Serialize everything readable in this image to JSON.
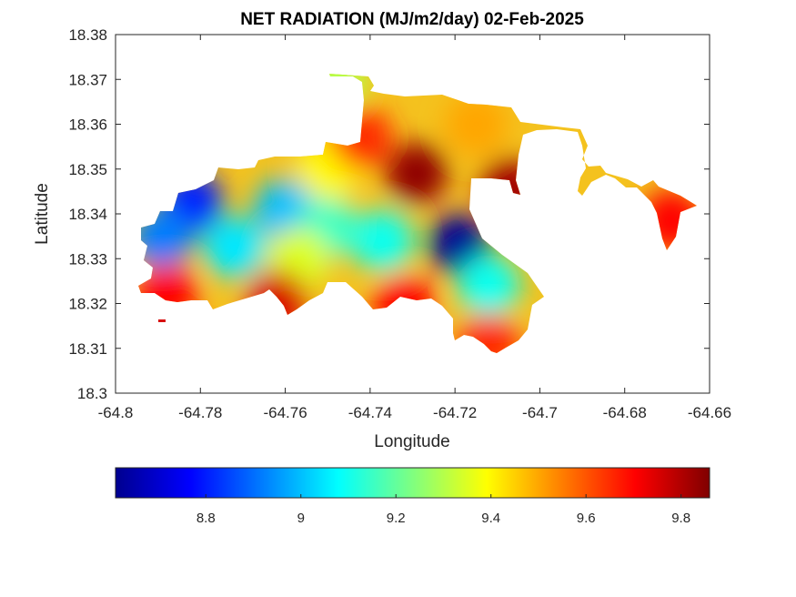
{
  "chart_data": {
    "type": "heatmap",
    "title": "NET RADIATION (MJ/m2/day) 02-Feb-2025",
    "xlabel": "Longitude",
    "ylabel": "Latitude",
    "xlim": [
      -64.8,
      -64.66
    ],
    "ylim": [
      18.3,
      18.38
    ],
    "x_ticks": [
      -64.8,
      -64.78,
      -64.76,
      -64.74,
      -64.72,
      -64.7,
      -64.68,
      -64.66
    ],
    "x_tick_labels": [
      "-64.8",
      "-64.78",
      "-64.76",
      "-64.74",
      "-64.72",
      "-64.7",
      "-64.68",
      "-64.66"
    ],
    "y_ticks": [
      18.3,
      18.31,
      18.32,
      18.33,
      18.34,
      18.35,
      18.36,
      18.37,
      18.38
    ],
    "y_tick_labels": [
      "18.3",
      "18.31",
      "18.32",
      "18.33",
      "18.34",
      "18.35",
      "18.36",
      "18.37",
      "18.38"
    ],
    "colormap": "jet",
    "colorbar": {
      "orientation": "horizontal",
      "position": "bottom",
      "range": [
        8.61,
        9.86
      ],
      "ticks": [
        8.8,
        9.0,
        9.2,
        9.4,
        9.6,
        9.8
      ],
      "tick_labels": [
        "8.8",
        "9",
        "9.2",
        "9.4",
        "9.6",
        "9.8"
      ]
    },
    "grid": false,
    "hotspots": [
      {
        "lon": -64.719,
        "lat": 18.3332,
        "value": 8.62
      },
      {
        "lon": -64.782,
        "lat": 18.3425,
        "value": 8.8
      },
      {
        "lon": -64.789,
        "lat": 18.3345,
        "value": 8.92
      },
      {
        "lon": -64.772,
        "lat": 18.3325,
        "value": 9.05
      },
      {
        "lon": -64.76,
        "lat": 18.341,
        "value": 9.0
      },
      {
        "lon": -64.712,
        "lat": 18.324,
        "value": 9.1
      },
      {
        "lon": -64.737,
        "lat": 18.334,
        "value": 9.1
      },
      {
        "lon": -64.75,
        "lat": 18.337,
        "value": 9.15
      },
      {
        "lon": -64.757,
        "lat": 18.33,
        "value": 9.35
      },
      {
        "lon": -64.75,
        "lat": 18.35,
        "value": 9.4
      },
      {
        "lon": -64.729,
        "lat": 18.349,
        "value": 9.84
      },
      {
        "lon": -64.742,
        "lat": 18.357,
        "value": 9.65
      },
      {
        "lon": -64.715,
        "lat": 18.36,
        "value": 9.5
      },
      {
        "lon": -64.707,
        "lat": 18.3455,
        "value": 9.82
      },
      {
        "lon": -64.788,
        "lat": 18.322,
        "value": 9.7
      },
      {
        "lon": -64.762,
        "lat": 18.3205,
        "value": 9.75
      },
      {
        "lon": -64.732,
        "lat": 18.3195,
        "value": 9.7
      },
      {
        "lon": -64.712,
        "lat": 18.311,
        "value": 9.65
      },
      {
        "lon": -64.669,
        "lat": 18.3385,
        "value": 9.7
      },
      {
        "lon": -64.748,
        "lat": 18.37,
        "value": 9.3
      }
    ]
  }
}
